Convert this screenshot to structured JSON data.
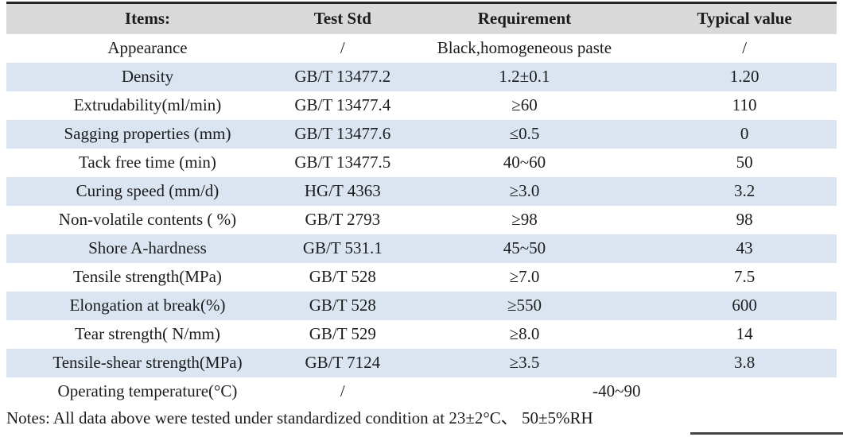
{
  "colors": {
    "header_bg": "#d9d9d9",
    "stripe_bg": "#dbe5f1",
    "top_border": "#262626",
    "text": "#1c1c1c"
  },
  "table": {
    "columns": [
      "Items:",
      "Test Std",
      "Requirement",
      "Typical value"
    ],
    "rows": [
      {
        "cells": [
          "Appearance",
          "/",
          "Black,homogeneous paste",
          "/"
        ]
      },
      {
        "cells": [
          "Density",
          "GB/T 13477.2",
          "1.2±0.1",
          "1.20"
        ]
      },
      {
        "cells": [
          "Extrudability(ml/min)",
          "GB/T 13477.4",
          "≥60",
          "110"
        ]
      },
      {
        "cells": [
          "Sagging properties (mm)",
          "GB/T 13477.6",
          "≤0.5",
          "0"
        ]
      },
      {
        "cells": [
          "Tack free time (min)",
          "GB/T 13477.5",
          "40~60",
          "50"
        ]
      },
      {
        "cells": [
          "Curing speed (mm/d)",
          "HG/T 4363",
          "≥3.0",
          "3.2"
        ]
      },
      {
        "cells": [
          "Non-volatile contents ( %)",
          "GB/T 2793",
          "≥98",
          "98"
        ]
      },
      {
        "cells": [
          "Shore A-hardness",
          "GB/T 531.1",
          "45~50",
          "43"
        ]
      },
      {
        "cells": [
          "Tensile strength(MPa)",
          "GB/T 528",
          "≥7.0",
          "7.5"
        ]
      },
      {
        "cells": [
          "Elongation at break(%)",
          "GB/T 528",
          "≥550",
          "600"
        ]
      },
      {
        "cells": [
          "Tear strength( N/mm)",
          "GB/T 529",
          "≥8.0",
          "14"
        ]
      },
      {
        "cells": [
          "Tensile-shear strength(MPa)",
          "GB/T 7124",
          "≥3.5",
          "3.8"
        ]
      },
      {
        "cells": [
          "Operating temperature(°C)",
          "/",
          "-40~90"
        ],
        "span_last": true
      }
    ]
  },
  "notes": "Notes: All data above were tested under standardized condition at 23±2°C、 50±5%RH"
}
